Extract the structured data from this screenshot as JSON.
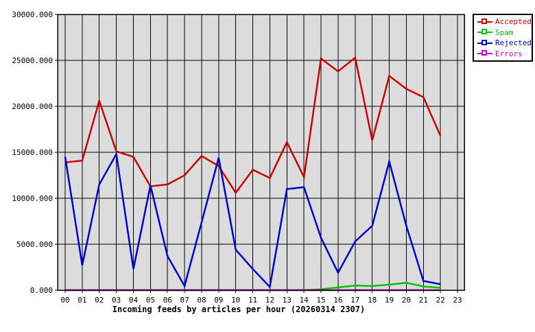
{
  "chart_data": {
    "type": "line",
    "title": "Incoming feeds by articles per hour (20260314 2307)",
    "xlabel": "",
    "ylabel": "",
    "x_categories": [
      "00",
      "01",
      "02",
      "03",
      "04",
      "05",
      "06",
      "07",
      "08",
      "09",
      "10",
      "11",
      "12",
      "13",
      "14",
      "15",
      "16",
      "17",
      "18",
      "19",
      "20",
      "21",
      "22",
      "23"
    ],
    "ylim": [
      0,
      30000
    ],
    "y_ticks": [
      0,
      5000,
      10000,
      15000,
      20000,
      25000,
      30000
    ],
    "y_tick_labels": [
      "0.000",
      "5000.000",
      "10000.000",
      "15000.000",
      "20000.000",
      "25000.000",
      "30000.000"
    ],
    "grid": true,
    "plot_background": "#dcdcdc",
    "grid_color": "#000000",
    "legend_position": "outside-top-right",
    "series": [
      {
        "name": "Accepted",
        "color": "#cc0000",
        "values": [
          13900,
          14100,
          20600,
          15100,
          14500,
          11300,
          11500,
          12500,
          14600,
          13500,
          10600,
          13100,
          12200,
          16100,
          12300,
          25200,
          23800,
          25300,
          16300,
          23300,
          21900,
          21000,
          16800
        ]
      },
      {
        "name": "Spam",
        "color": "#00c000",
        "values": [
          0,
          0,
          0,
          0,
          0,
          0,
          0,
          0,
          0,
          0,
          0,
          0,
          0,
          0,
          0,
          100,
          300,
          500,
          450,
          600,
          800,
          400,
          250
        ]
      },
      {
        "name": "Rejected",
        "color": "#0000cc",
        "values": [
          14500,
          2700,
          11500,
          14800,
          2300,
          11400,
          3700,
          450,
          7400,
          14400,
          4400,
          2300,
          350,
          11000,
          11200,
          5700,
          1900,
          5300,
          7000,
          14000,
          7000,
          1000,
          650
        ]
      },
      {
        "name": "Errors",
        "color": "#c800c8",
        "values": [
          0,
          0,
          0,
          0,
          0,
          0,
          0,
          0,
          0,
          0,
          0,
          0,
          0,
          0,
          0,
          0,
          0,
          0,
          0,
          0,
          0,
          0,
          0
        ]
      }
    ]
  },
  "legend": {
    "items": [
      {
        "label": "Accepted",
        "color": "#cc0000"
      },
      {
        "label": "Spam",
        "color": "#00c000"
      },
      {
        "label": "Rejected",
        "color": "#0000cc"
      },
      {
        "label": "Errors",
        "color": "#c800c8"
      }
    ]
  }
}
